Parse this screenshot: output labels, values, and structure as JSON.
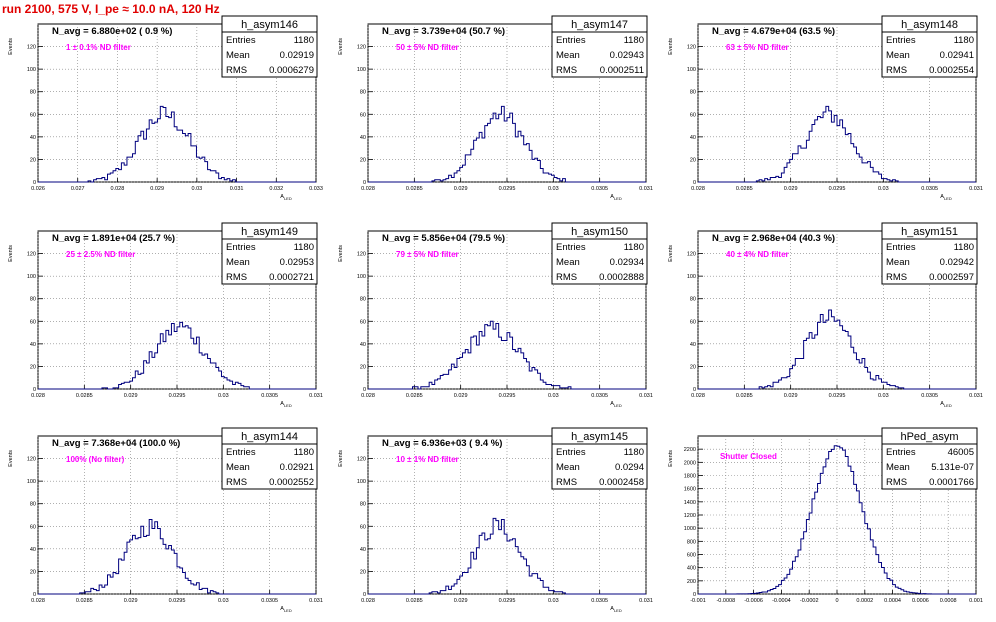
{
  "header": {
    "run_title": "run 2100,   575 V, I_pe ≈ 10.0 nA, 120 Hz"
  },
  "colors": {
    "histogram": "#00007f",
    "annotation": "#ff00ff",
    "title": "#e00000",
    "grid": "#7f7f7f",
    "axis": "#000000"
  },
  "chart_data": [
    {
      "type": "bar",
      "name": "h_asym146",
      "xlim": [
        0.026,
        0.033
      ],
      "ylim": [
        0,
        140
      ],
      "ylabel": "Events",
      "xlabel": "A_LED",
      "xticks": [
        "0.026",
        "0.027",
        "0.028",
        "0.029",
        "0.03",
        "0.031",
        "0.032",
        "0.033"
      ],
      "xtick_values": [
        0.026,
        0.027,
        0.028,
        0.029,
        0.03,
        0.031,
        0.032,
        0.033
      ],
      "yticks": [
        "0",
        "20",
        "40",
        "60",
        "80",
        "100",
        "120"
      ],
      "ytick_values": [
        0,
        20,
        40,
        60,
        80,
        100,
        120
      ],
      "nbins": 100,
      "stats": {
        "entries": "1180",
        "mean": "0.02919",
        "rms": "0.0006279"
      },
      "navg": "N_avg = 6.880e+02 ( 0.9 %)",
      "filter_label": "1 ± 0.1% ND filter",
      "mean": 0.02919,
      "rms": 0.00063,
      "peak": 60
    },
    {
      "type": "bar",
      "name": "h_asym147",
      "xlim": [
        0.028,
        0.031
      ],
      "ylim": [
        0,
        140
      ],
      "ylabel": "Events",
      "xlabel": "A_LED",
      "xticks": [
        "0.028",
        "0.0285",
        "0.029",
        "0.0295",
        "0.03",
        "0.0305",
        "0.031"
      ],
      "xtick_values": [
        0.028,
        0.0285,
        0.029,
        0.0295,
        0.03,
        0.0305,
        0.031
      ],
      "yticks": [
        "0",
        "20",
        "40",
        "60",
        "80",
        "100",
        "120"
      ],
      "ytick_values": [
        0,
        20,
        40,
        60,
        80,
        100,
        120
      ],
      "nbins": 100,
      "stats": {
        "entries": "1180",
        "mean": "0.02943",
        "rms": "0.0002511"
      },
      "navg": "N_avg = 3.739e+04 (50.7 %)",
      "filter_label": "50 ± 5% ND filter",
      "mean": 0.02943,
      "rms": 0.00025,
      "peak": 60
    },
    {
      "type": "bar",
      "name": "h_asym148",
      "xlim": [
        0.028,
        0.031
      ],
      "ylim": [
        0,
        140
      ],
      "ylabel": "Events",
      "xlabel": "A_LED",
      "xticks": [
        "0.028",
        "0.0285",
        "0.029",
        "0.0295",
        "0.03",
        "0.0305",
        "0.031"
      ],
      "xtick_values": [
        0.028,
        0.0285,
        0.029,
        0.0295,
        0.03,
        0.0305,
        0.031
      ],
      "yticks": [
        "0",
        "20",
        "40",
        "60",
        "80",
        "100",
        "120"
      ],
      "ytick_values": [
        0,
        20,
        40,
        60,
        80,
        100,
        120
      ],
      "nbins": 100,
      "stats": {
        "entries": "1180",
        "mean": "0.02941",
        "rms": "0.0002554"
      },
      "navg": "N_avg = 4.679e+04 (63.5 %)",
      "filter_label": "63 ± 5% ND filter",
      "mean": 0.02941,
      "rms": 0.000255,
      "peak": 60
    },
    {
      "type": "bar",
      "name": "h_asym149",
      "xlim": [
        0.028,
        0.031
      ],
      "ylim": [
        0,
        140
      ],
      "ylabel": "Events",
      "xlabel": "A_LED",
      "xticks": [
        "0.028",
        "0.0285",
        "0.029",
        "0.0295",
        "0.03",
        "0.0305",
        "0.031"
      ],
      "xtick_values": [
        0.028,
        0.0285,
        0.029,
        0.0295,
        0.03,
        0.0305,
        0.031
      ],
      "yticks": [
        "0",
        "20",
        "40",
        "60",
        "80",
        "100",
        "120"
      ],
      "ytick_values": [
        0,
        20,
        40,
        60,
        80,
        100,
        120
      ],
      "nbins": 100,
      "stats": {
        "entries": "1180",
        "mean": "0.02953",
        "rms": "0.0002721"
      },
      "navg": "N_avg = 1.891e+04 (25.7 %)",
      "filter_label": "25 ± 2.5% ND filter",
      "mean": 0.02953,
      "rms": 0.00027,
      "peak": 55
    },
    {
      "type": "bar",
      "name": "h_asym150",
      "xlim": [
        0.028,
        0.031
      ],
      "ylim": [
        0,
        140
      ],
      "ylabel": "Events",
      "xlabel": "A_LED",
      "xticks": [
        "0.028",
        "0.0285",
        "0.029",
        "0.0295",
        "0.03",
        "0.0305",
        "0.031"
      ],
      "xtick_values": [
        0.028,
        0.0285,
        0.029,
        0.0295,
        0.03,
        0.0305,
        0.031
      ],
      "yticks": [
        "0",
        "20",
        "40",
        "60",
        "80",
        "100",
        "120"
      ],
      "ytick_values": [
        0,
        20,
        40,
        60,
        80,
        100,
        120
      ],
      "nbins": 100,
      "stats": {
        "entries": "1180",
        "mean": "0.02934",
        "rms": "0.0002888"
      },
      "navg": "N_avg = 5.856e+04 (79.5 %)",
      "filter_label": "79 ± 5% ND filter",
      "mean": 0.02934,
      "rms": 0.00029,
      "peak": 53
    },
    {
      "type": "bar",
      "name": "h_asym151",
      "xlim": [
        0.028,
        0.031
      ],
      "ylim": [
        0,
        140
      ],
      "ylabel": "Events",
      "xlabel": "A_LED",
      "xticks": [
        "0.028",
        "0.0285",
        "0.029",
        "0.0295",
        "0.03",
        "0.0305",
        "0.031"
      ],
      "xtick_values": [
        0.028,
        0.0285,
        0.029,
        0.0295,
        0.03,
        0.0305,
        0.031
      ],
      "yticks": [
        "0",
        "20",
        "40",
        "60",
        "80",
        "100",
        "120"
      ],
      "ytick_values": [
        0,
        20,
        40,
        60,
        80,
        100,
        120
      ],
      "nbins": 100,
      "stats": {
        "entries": "1180",
        "mean": "0.02942",
        "rms": "0.0002597"
      },
      "navg": "N_avg = 2.968e+04 (40.3 %)",
      "filter_label": "40 ± 4% ND filter",
      "mean": 0.02942,
      "rms": 0.00026,
      "peak": 62
    },
    {
      "type": "bar",
      "name": "h_asym144",
      "xlim": [
        0.028,
        0.031
      ],
      "ylim": [
        0,
        140
      ],
      "ylabel": "Events",
      "xlabel": "A_LED",
      "xticks": [
        "0.028",
        "0.0285",
        "0.029",
        "0.0295",
        "0.03",
        "0.0305",
        "0.031"
      ],
      "xtick_values": [
        0.028,
        0.0285,
        0.029,
        0.0295,
        0.03,
        0.0305,
        0.031
      ],
      "yticks": [
        "0",
        "20",
        "40",
        "60",
        "80",
        "100",
        "120"
      ],
      "ytick_values": [
        0,
        20,
        40,
        60,
        80,
        100,
        120
      ],
      "nbins": 100,
      "stats": {
        "entries": "1180",
        "mean": "0.02921",
        "rms": "0.0002552"
      },
      "navg": "N_avg = 7.368e+04 (100.0 %)",
      "filter_label": "100% (No filter)",
      "mean": 0.02921,
      "rms": 0.000255,
      "peak": 60
    },
    {
      "type": "bar",
      "name": "h_asym145",
      "xlim": [
        0.028,
        0.031
      ],
      "ylim": [
        0,
        140
      ],
      "ylabel": "Events",
      "xlabel": "A_LED",
      "xticks": [
        "0.028",
        "0.0285",
        "0.029",
        "0.0295",
        "0.03",
        "0.0305",
        "0.031"
      ],
      "xtick_values": [
        0.028,
        0.0285,
        0.029,
        0.0295,
        0.03,
        0.0305,
        0.031
      ],
      "yticks": [
        "0",
        "20",
        "40",
        "60",
        "80",
        "100",
        "120"
      ],
      "ytick_values": [
        0,
        20,
        40,
        60,
        80,
        100,
        120
      ],
      "nbins": 100,
      "stats": {
        "entries": "1180",
        "mean": "0.0294",
        "rms": "0.0002458"
      },
      "navg": "N_avg = 6.936e+03 ( 9.4 %)",
      "filter_label": "10 ± 1% ND filter",
      "mean": 0.0294,
      "rms": 0.000246,
      "peak": 60
    },
    {
      "type": "bar",
      "name": "hPed_asym",
      "xlim": [
        -0.001,
        0.001
      ],
      "ylim": [
        0,
        2400
      ],
      "ylabel": "Events",
      "xlabel": "",
      "xticks": [
        "-0.001",
        "-0.0008",
        "-0.0006",
        "-0.0004",
        "-0.0002",
        "0",
        "0.0002",
        "0.0004",
        "0.0006",
        "0.0008",
        "0.001"
      ],
      "xtick_values": [
        -0.001,
        -0.0008,
        -0.0006,
        -0.0004,
        -0.0002,
        0,
        0.0002,
        0.0004,
        0.0006,
        0.0008,
        0.001
      ],
      "yticks": [
        "0",
        "200",
        "400",
        "600",
        "800",
        "1000",
        "1200",
        "1400",
        "1600",
        "1800",
        "2000",
        "2200"
      ],
      "ytick_values": [
        0,
        200,
        400,
        600,
        800,
        1000,
        1200,
        1400,
        1600,
        1800,
        2000,
        2200
      ],
      "nbins": 100,
      "stats": {
        "entries": "46005",
        "mean": "5.131e-07",
        "rms": "0.0001766"
      },
      "navg": "",
      "filter_label": "Shutter Closed",
      "mean": 0.0,
      "rms": 0.000177,
      "peak": 2230
    }
  ]
}
